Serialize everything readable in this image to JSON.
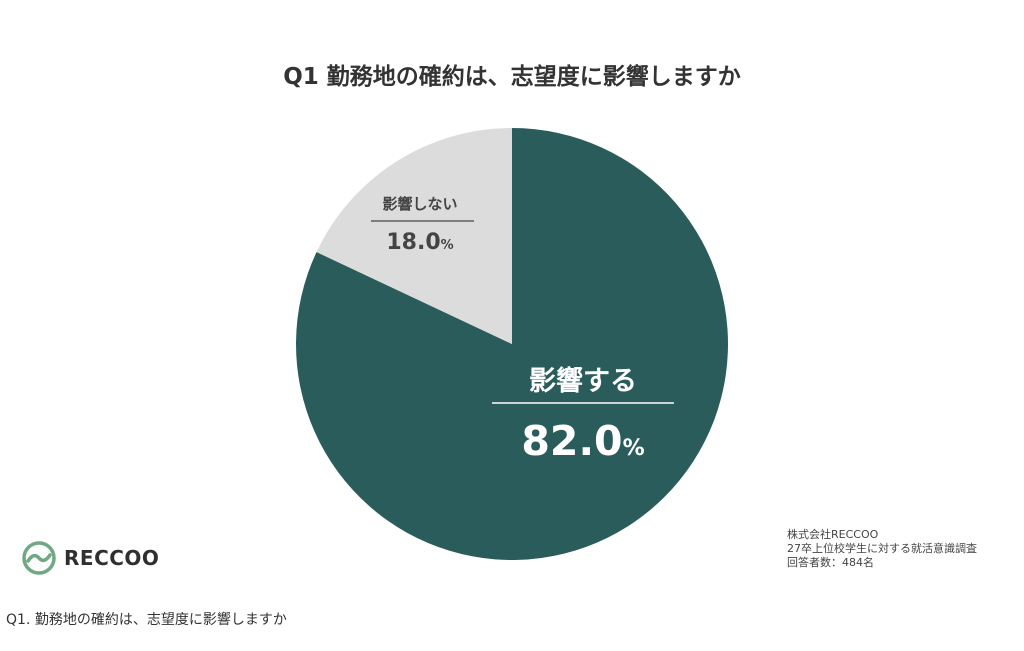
{
  "chart_data": {
    "type": "pie",
    "title": "Q1 勤務地の確約は、志望度に影響しますか",
    "slices": [
      {
        "label": "影響する",
        "value": 82.0,
        "display": "82.0",
        "unit": "%",
        "color": "#2a5c5c",
        "text_color": "#ffffff"
      },
      {
        "label": "影響しない",
        "value": 18.0,
        "display": "18.0",
        "unit": "%",
        "color": "#dcdcdc",
        "text_color": "#444444"
      }
    ]
  },
  "source": {
    "company": "株式会社RECCOO",
    "survey": "27卒上位校学生に対する就活意識調査",
    "respondents": "回答者数：484名"
  },
  "logo": {
    "name": "RECCOO",
    "color": "#6fa883"
  },
  "caption": "Q1. 勤務地の確約は、志望度に影響しますか"
}
